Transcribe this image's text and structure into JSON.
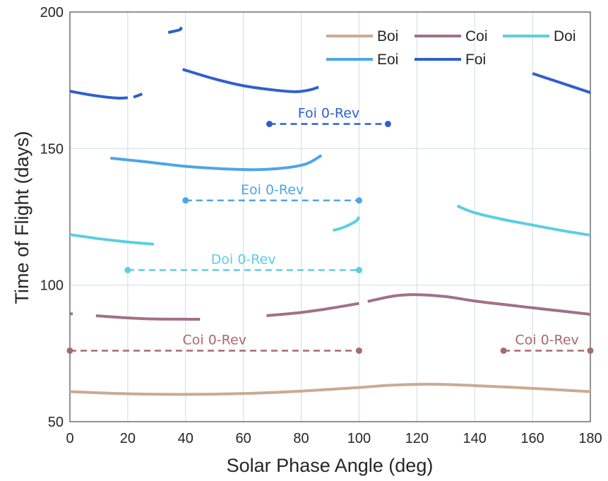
{
  "chart_data": {
    "type": "line",
    "xlabel": "Solar Phase Angle (deg)",
    "ylabel": "Time of Flight (days)",
    "xlim": [
      0,
      180
    ],
    "ylim": [
      50,
      200
    ],
    "xticks": [
      0,
      20,
      40,
      60,
      80,
      100,
      120,
      140,
      160,
      180
    ],
    "yticks": [
      50,
      100,
      150,
      200
    ],
    "grid": true,
    "legend_position": "top-right",
    "series": [
      {
        "name": "Boi",
        "color": "#c9ab93",
        "segments": [
          [
            [
              0,
              61
            ],
            [
              20,
              60.2
            ],
            [
              40,
              60
            ],
            [
              60,
              60.3
            ],
            [
              80,
              61.2
            ],
            [
              100,
              62.5
            ],
            [
              110,
              63.3
            ],
            [
              125,
              63.7
            ],
            [
              140,
              63.2
            ],
            [
              160,
              62.2
            ],
            [
              180,
              61
            ]
          ]
        ]
      },
      {
        "name": "Coi",
        "color": "#a07088",
        "segments": [
          [
            [
              0,
              89.5
            ],
            [
              1,
              89.5
            ]
          ],
          [
            [
              9,
              88.8
            ],
            [
              20,
              88
            ],
            [
              30,
              87.6
            ],
            [
              45,
              87.5
            ]
          ],
          [
            [
              68,
              88.8
            ],
            [
              80,
              90
            ],
            [
              90,
              91.5
            ],
            [
              100,
              93.3
            ]
          ],
          [
            [
              103,
              94
            ],
            [
              112,
              96
            ],
            [
              120,
              96.5
            ],
            [
              130,
              95.8
            ],
            [
              140,
              94.2
            ],
            [
              155,
              92.3
            ],
            [
              170,
              90.5
            ],
            [
              180,
              89.3
            ]
          ]
        ]
      },
      {
        "name": "Doi",
        "color": "#5bcfe0",
        "segments": [
          [
            [
              0,
              118.5
            ],
            [
              10,
              117
            ],
            [
              20,
              115.8
            ],
            [
              29,
              115
            ]
          ],
          [
            [
              91,
              120
            ],
            [
              95,
              121.3
            ],
            [
              99,
              123.5
            ],
            [
              100,
              125
            ]
          ],
          [
            [
              134,
              129
            ],
            [
              140,
              126.5
            ],
            [
              150,
              124
            ],
            [
              160,
              122
            ],
            [
              170,
              120
            ],
            [
              180,
              118.3
            ]
          ]
        ]
      },
      {
        "name": "Eoi",
        "color": "#4ea5e8",
        "segments": [
          [
            [
              14,
              146.5
            ],
            [
              25,
              145.3
            ],
            [
              40,
              143.5
            ],
            [
              55,
              142.5
            ],
            [
              65,
              142.3
            ],
            [
              75,
              143
            ],
            [
              82,
              144.5
            ],
            [
              87,
              147.5
            ]
          ]
        ]
      },
      {
        "name": "Foi",
        "color": "#2f5fcf",
        "segments": [
          [
            [
              0,
              171
            ],
            [
              8,
              169.5
            ],
            [
              16,
              168.5
            ],
            [
              20,
              168.6
            ]
          ],
          [
            [
              22,
              168.8
            ],
            [
              25,
              170
            ]
          ],
          [
            [
              34,
              192.5
            ],
            [
              38,
              193.5
            ],
            [
              38.5,
              194.5
            ]
          ],
          [
            [
              39,
              179
            ],
            [
              50,
              175.5
            ],
            [
              60,
              173
            ],
            [
              70,
              171.5
            ],
            [
              78,
              170.8
            ],
            [
              83,
              171.5
            ],
            [
              86,
              172.5
            ]
          ],
          [
            [
              160,
              177.5
            ],
            [
              170,
              174
            ],
            [
              180,
              170.5
            ]
          ]
        ]
      }
    ],
    "annotations": [
      {
        "label": "Foi 0-Rev",
        "color": "#2f5fcf",
        "y": 159,
        "x_range": [
          69,
          110
        ]
      },
      {
        "label": "Eoi 0-Rev",
        "color": "#4ea5e8",
        "y": 131,
        "x_range": [
          40,
          100
        ]
      },
      {
        "label": "Doi 0-Rev",
        "color": "#5bcfe0",
        "y": 105.5,
        "x_range": [
          20,
          100
        ]
      },
      {
        "label": "Coi 0-Rev",
        "color": "#a86a6a",
        "y": 76,
        "x_range": [
          0,
          100
        ]
      },
      {
        "label": "Coi 0-Rev",
        "color": "#a86a6a",
        "y": 76,
        "x_range": [
          150,
          180
        ]
      }
    ]
  }
}
